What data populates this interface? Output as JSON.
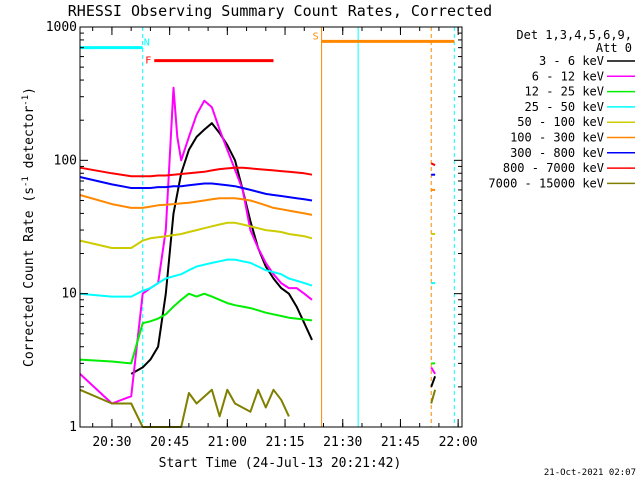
{
  "chart_data": {
    "type": "line",
    "title": "RHESSI Observing Summary Count Rates, Corrected",
    "xlabel": "Start Time (24-Jul-13 20:21:42)",
    "ylabel": "Corrected Count Rate (s",
    "ylabel_sup1": "-1",
    "ylabel_mid": " detector",
    "ylabel_sup2": "-1",
    "ylabel_end": ")",
    "y_scale": "log",
    "ylim": [
      1,
      1000
    ],
    "xlim": [
      "20:21:42",
      "22:01:00"
    ],
    "x_ticks": [
      "20:30",
      "20:45",
      "21:00",
      "21:15",
      "21:30",
      "21:45",
      "22:00"
    ],
    "y_ticks": [
      "1",
      "10",
      "100",
      "1000"
    ],
    "legend_header": [
      "Det 1,3,4,5,6,9,",
      "Att 0"
    ],
    "legend_position": "right",
    "timestamp": "21-Oct-2021 02:07",
    "series": [
      {
        "name": "3 - 6 keV",
        "color": "#000000",
        "x": [
          "20:35",
          "20:38",
          "20:40",
          "20:42",
          "20:44",
          "20:46",
          "20:48",
          "20:50",
          "20:52",
          "20:54",
          "20:56",
          "20:58",
          "21:00",
          "21:02",
          "21:04",
          "21:06",
          "21:08",
          "21:10",
          "21:12",
          "21:14",
          "21:16",
          "21:18",
          "21:20",
          "21:22",
          "21:53",
          "21:54"
        ],
        "y": [
          2.5,
          2.8,
          3.2,
          4,
          10,
          40,
          80,
          120,
          150,
          170,
          190,
          160,
          130,
          100,
          60,
          35,
          22,
          16,
          13,
          11,
          10,
          8,
          6,
          4.5,
          2,
          2.4
        ]
      },
      {
        "name": "6 - 12 keV",
        "color": "#ff00ff",
        "x": [
          "20:21:42",
          "20:30",
          "20:35",
          "20:38",
          "20:40",
          "20:42",
          "20:44",
          "20:46",
          "20:47",
          "20:48",
          "20:50",
          "20:52",
          "20:54",
          "20:56",
          "20:58",
          "21:00",
          "21:02",
          "21:04",
          "21:06",
          "21:08",
          "21:10",
          "21:12",
          "21:14",
          "21:16",
          "21:18",
          "21:20",
          "21:22",
          "21:53",
          "21:54"
        ],
        "y": [
          2.5,
          1.5,
          1.7,
          10,
          11,
          12,
          30,
          350,
          150,
          100,
          150,
          220,
          280,
          250,
          170,
          120,
          85,
          60,
          30,
          22,
          17,
          14,
          12,
          11,
          11,
          10,
          9,
          2.8,
          2.5
        ]
      },
      {
        "name": "12 - 25 keV",
        "color": "#00ee00",
        "x": [
          "20:21:42",
          "20:30",
          "20:35",
          "20:38",
          "20:40",
          "20:42",
          "20:44",
          "20:46",
          "20:48",
          "20:50",
          "20:52",
          "20:54",
          "20:56",
          "20:58",
          "21:00",
          "21:02",
          "21:04",
          "21:06",
          "21:08",
          "21:10",
          "21:12",
          "21:14",
          "21:16",
          "21:18",
          "21:20",
          "21:22",
          "21:53",
          "21:54"
        ],
        "y": [
          3.2,
          3.1,
          3.0,
          6,
          6.2,
          6.5,
          7,
          8,
          9,
          10,
          9.5,
          10,
          9.5,
          9,
          8.5,
          8.2,
          8,
          7.8,
          7.5,
          7.2,
          7,
          6.8,
          6.6,
          6.5,
          6.4,
          6.3,
          3,
          3
        ]
      },
      {
        "name": "25 - 50 keV",
        "color": "#00ffff",
        "x": [
          "20:21:42",
          "20:30",
          "20:35",
          "20:38",
          "20:40",
          "20:42",
          "20:44",
          "20:46",
          "20:48",
          "20:50",
          "20:52",
          "20:54",
          "20:56",
          "20:58",
          "21:00",
          "21:02",
          "21:04",
          "21:06",
          "21:08",
          "21:10",
          "21:12",
          "21:14",
          "21:16",
          "21:18",
          "21:20",
          "21:22",
          "21:53",
          "21:54"
        ],
        "y": [
          10,
          9.5,
          9.5,
          10.5,
          11,
          12,
          13,
          13.5,
          14,
          15,
          16,
          16.5,
          17,
          17.5,
          18,
          18,
          17.5,
          17,
          16,
          15,
          14.5,
          14,
          13,
          12.5,
          12,
          11.5,
          12,
          12
        ]
      },
      {
        "name": "50 - 100 keV",
        "color": "#cccc00",
        "x": [
          "20:21:42",
          "20:30",
          "20:35",
          "20:38",
          "20:40",
          "20:42",
          "20:44",
          "20:46",
          "20:48",
          "20:50",
          "20:52",
          "20:54",
          "20:56",
          "20:58",
          "21:00",
          "21:02",
          "21:04",
          "21:06",
          "21:08",
          "21:10",
          "21:12",
          "21:14",
          "21:16",
          "21:18",
          "21:20",
          "21:22",
          "21:53",
          "21:54"
        ],
        "y": [
          25,
          22,
          22,
          25,
          26,
          26.5,
          27,
          27.5,
          28,
          29,
          30,
          31,
          32,
          33,
          34,
          34,
          33,
          32,
          31,
          30,
          29.5,
          29,
          28,
          27.5,
          27,
          26,
          28,
          28
        ]
      },
      {
        "name": "100 - 300 keV",
        "color": "#ff8800",
        "x": [
          "20:21:42",
          "20:30",
          "20:35",
          "20:38",
          "20:40",
          "20:42",
          "20:44",
          "20:46",
          "20:48",
          "20:50",
          "20:52",
          "20:54",
          "20:56",
          "20:58",
          "21:00",
          "21:02",
          "21:04",
          "21:06",
          "21:08",
          "21:10",
          "21:12",
          "21:14",
          "21:16",
          "21:18",
          "21:20",
          "21:22",
          "21:53",
          "21:54"
        ],
        "y": [
          55,
          47,
          44,
          44,
          45,
          46,
          46.5,
          47,
          47.5,
          48,
          49,
          50,
          51,
          52,
          52,
          52,
          51,
          50,
          48,
          46,
          44,
          43,
          42,
          41,
          40,
          39,
          60,
          60
        ]
      },
      {
        "name": "300 - 800 keV",
        "color": "#0000ff",
        "x": [
          "20:21:42",
          "20:30",
          "20:35",
          "20:38",
          "20:40",
          "20:42",
          "20:44",
          "20:46",
          "20:48",
          "20:50",
          "20:52",
          "20:54",
          "20:56",
          "20:58",
          "21:00",
          "21:02",
          "21:04",
          "21:06",
          "21:08",
          "21:10",
          "21:12",
          "21:14",
          "21:16",
          "21:18",
          "21:20",
          "21:22",
          "21:53",
          "21:54"
        ],
        "y": [
          75,
          66,
          62,
          62,
          62,
          63,
          63,
          64,
          64,
          65,
          66,
          67,
          67,
          66,
          65,
          64,
          62,
          60,
          58,
          56,
          55,
          54,
          53,
          52,
          51,
          50,
          78,
          78
        ]
      },
      {
        "name": "800 - 7000 keV",
        "color": "#ff0000",
        "x": [
          "20:21:42",
          "20:30",
          "20:35",
          "20:38",
          "20:40",
          "20:42",
          "20:44",
          "20:46",
          "20:48",
          "20:50",
          "20:52",
          "20:54",
          "20:56",
          "20:58",
          "21:00",
          "21:02",
          "21:04",
          "21:06",
          "21:08",
          "21:10",
          "21:12",
          "21:14",
          "21:16",
          "21:18",
          "21:20",
          "21:22",
          "21:53",
          "21:54"
        ],
        "y": [
          88,
          80,
          76,
          76,
          76,
          77,
          77,
          78,
          79,
          80,
          81,
          82,
          84,
          86,
          87,
          88,
          88,
          87,
          86,
          85,
          84,
          83,
          82,
          81,
          80,
          78,
          95,
          92
        ]
      },
      {
        "name": "7000 - 15000 keV",
        "color": "#808000",
        "x": [
          "20:21:42",
          "20:30",
          "20:35",
          "20:38",
          "20:40",
          "20:48",
          "20:50",
          "20:52",
          "20:56",
          "20:58",
          "21:00",
          "21:02",
          "21:06",
          "21:08",
          "21:10",
          "21:12",
          "21:14",
          "21:16",
          "21:53",
          "21:54"
        ],
        "y": [
          1.9,
          1.5,
          1.5,
          1.0,
          1.0,
          1.0,
          1.8,
          1.5,
          1.9,
          1.2,
          1.9,
          1.5,
          1.3,
          1.9,
          1.4,
          1.9,
          1.6,
          1.2,
          1.5,
          1.9
        ]
      }
    ],
    "annotations": [
      {
        "label": "N",
        "color": "#00ffff",
        "x_start": "20:21:42",
        "x_end": "20:38:00",
        "y": 700
      },
      {
        "label": "F",
        "color": "#ff0000",
        "x_start": "20:41:00",
        "x_end": "21:12:00",
        "y": 560
      },
      {
        "label": "S",
        "color": "#ff8800",
        "x_start": "21:24:30",
        "x_end": "21:59:00",
        "y": 780
      }
    ],
    "vertical_lines": [
      {
        "x": "20:38:00",
        "color": "#00ffff",
        "style": "dashed"
      },
      {
        "x": "21:24:30",
        "color": "#ff8800",
        "style": "solid"
      },
      {
        "x": "21:34:00",
        "color": "#00ffff",
        "style": "solid"
      },
      {
        "x": "21:53:00",
        "color": "#ff8800",
        "style": "dashed"
      },
      {
        "x": "21:59:00",
        "color": "#00ffff",
        "style": "dashed"
      }
    ]
  }
}
